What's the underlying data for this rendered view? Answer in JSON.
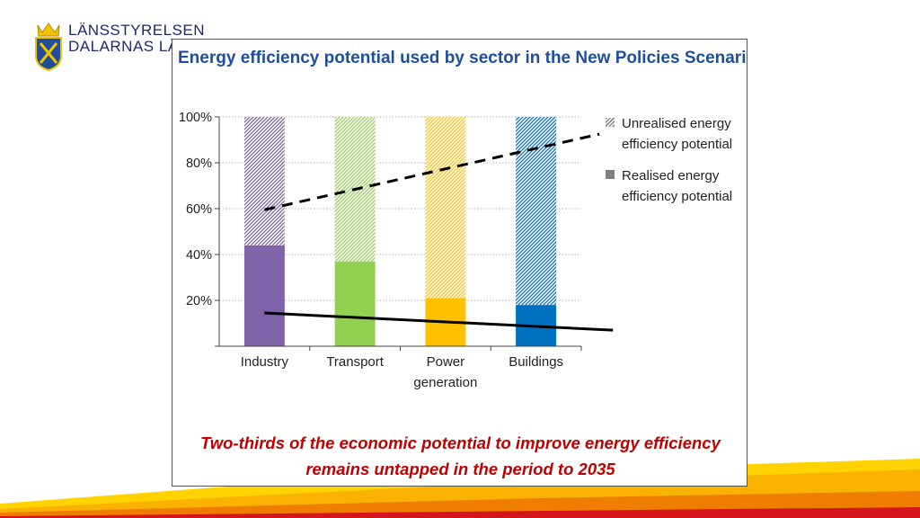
{
  "logo": {
    "line1": "LÄNSSTYRELSEN",
    "line2": "DALARNAS LÄN"
  },
  "colors": {
    "title": "#1f4e9c",
    "caption": "#c00000",
    "industry": "#7f63a8",
    "transport": "#92d050",
    "power": "#ffc000",
    "buildings": "#0070c0"
  },
  "chart_data": {
    "type": "bar",
    "stacked": true,
    "title": "Energy efficiency potential used by sector in the New Policies Scenario",
    "categories": [
      "Industry",
      "Transport",
      "Power generation",
      "Buildings"
    ],
    "category_lines": [
      [
        "Industry"
      ],
      [
        "Transport"
      ],
      [
        "Power",
        "generation"
      ],
      [
        "Buildings"
      ]
    ],
    "series": [
      {
        "name": "Realised energy efficiency potential",
        "style": "solid",
        "values": [
          44,
          37,
          21,
          18
        ]
      },
      {
        "name": "Unrealised energy efficiency potential",
        "style": "hatched",
        "values": [
          56,
          63,
          79,
          82
        ]
      }
    ],
    "yticks": [
      "20%",
      "40%",
      "60%",
      "80%",
      "100%"
    ],
    "ytick_values": [
      20,
      40,
      60,
      80,
      100
    ],
    "ylim": [
      0,
      100
    ],
    "xlabel": "",
    "ylabel": "",
    "trend_lines": [
      {
        "style": "dashed",
        "from": [
          0,
          59.5
        ],
        "to": [
          3.7,
          92.5
        ]
      },
      {
        "style": "solid",
        "from": [
          0,
          14.5
        ],
        "to": [
          3.85,
          7
        ]
      }
    ],
    "legend": [
      {
        "label": "Unrealised energy efficiency potential",
        "style": "hatched"
      },
      {
        "label": "Realised energy efficiency potential",
        "style": "solid"
      }
    ],
    "legend_position": "right",
    "grid": true
  },
  "caption": {
    "line1": "Two-thirds of the economic potential to improve energy efficiency",
    "line2": "remains untapped in the period to 2035"
  }
}
